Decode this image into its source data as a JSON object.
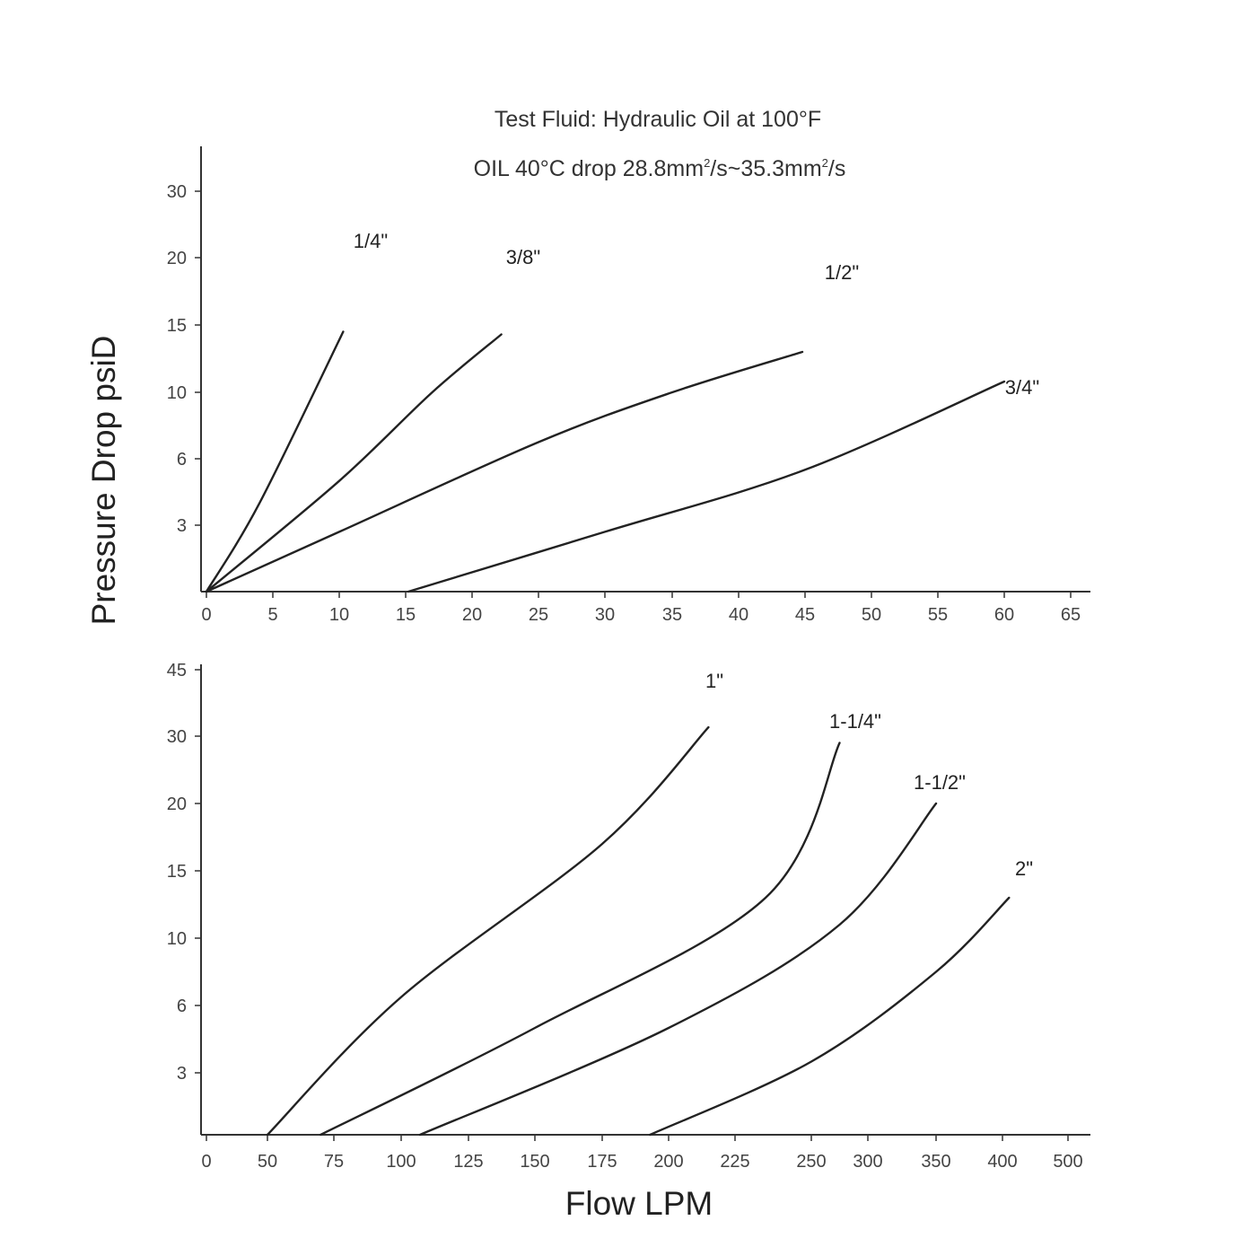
{
  "header": {
    "title_line1": "Test Fluid: Hydraulic Oil at 100°F",
    "title_line2_prefix": "OIL 40°C drop 28.8mm",
    "title_line2_mid": "/s~35.3mm",
    "title_line2_suffix": "/s",
    "superscript": "2"
  },
  "axes": {
    "ylabel": "Pressure Drop psiD",
    "xlabel": "Flow LPM"
  },
  "chart_data": [
    {
      "type": "line",
      "x_ticks": [
        "0",
        "5",
        "10",
        "15",
        "20",
        "25",
        "30",
        "35",
        "40",
        "45",
        "50",
        "55",
        "60",
        "65"
      ],
      "y_ticks": [
        "3",
        "6",
        "10",
        "15",
        "20",
        "30"
      ],
      "series": [
        {
          "name": "1/4\"",
          "points": [
            [
              0,
              0
            ],
            [
              4,
              4
            ],
            [
              10.3,
              14.5
            ]
          ]
        },
        {
          "name": "3/8\"",
          "points": [
            [
              0,
              0
            ],
            [
              10,
              5
            ],
            [
              17,
              10
            ],
            [
              22.2,
              14.3
            ]
          ]
        },
        {
          "name": "1/2\"",
          "points": [
            [
              0,
              0
            ],
            [
              10,
              2.7
            ],
            [
              25,
              7
            ],
            [
              35,
              10
            ],
            [
              44.8,
              13
            ]
          ]
        },
        {
          "name": "3/4\"",
          "points": [
            [
              15.2,
              0
            ],
            [
              30,
              2.7
            ],
            [
              45,
              5.5
            ],
            [
              60,
              10.8
            ]
          ]
        }
      ]
    },
    {
      "type": "line",
      "x_ticks": [
        "0",
        "50",
        "75",
        "100",
        "125",
        "150",
        "175",
        "200",
        "225",
        "250",
        "300",
        "350",
        "400",
        "500"
      ],
      "y_ticks": [
        "3",
        "6",
        "10",
        "15",
        "20",
        "30",
        "45"
      ],
      "series": [
        {
          "name": "1\"",
          "points": [
            [
              50,
              0
            ],
            [
              100,
              6.5
            ],
            [
              175,
              17
            ],
            [
              215,
              32
            ]
          ]
        },
        {
          "name": "1-1/4\"",
          "points": [
            [
              70,
              0
            ],
            [
              150,
              5
            ],
            [
              235,
              13
            ],
            [
              275,
              29
            ]
          ]
        },
        {
          "name": "1-1/2\"",
          "points": [
            [
              107,
              0
            ],
            [
              200,
              5
            ],
            [
              275,
              11
            ],
            [
              350,
              20
            ]
          ]
        },
        {
          "name": "2\"",
          "points": [
            [
              193,
              0
            ],
            [
              250,
              3.5
            ],
            [
              350,
              8
            ],
            [
              410,
              13
            ]
          ]
        }
      ]
    }
  ]
}
